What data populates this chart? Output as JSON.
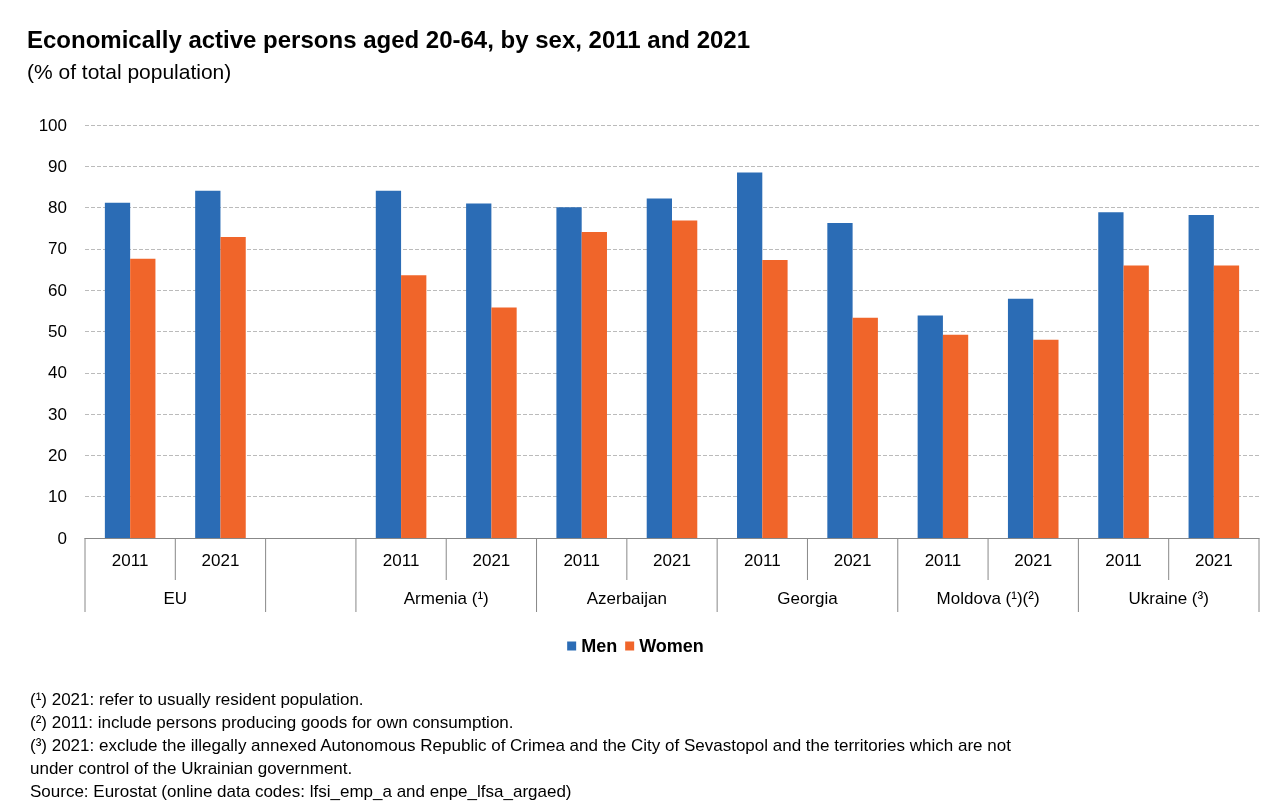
{
  "chart_data": {
    "type": "bar",
    "title": "Economically active persons aged 20-64, by sex, 2011 and 2021",
    "subtitle": "(% of total population)",
    "categories": [
      "2011",
      "2021",
      null,
      "2011",
      "2021",
      "2011",
      "2021",
      "2011",
      "2021",
      "2011",
      "2021",
      "2011",
      "2021"
    ],
    "series": [
      {
        "name": "Men",
        "color": "#2b6cb5",
        "values": [
          81.2,
          84.1,
          null,
          84.1,
          81.0,
          80.1,
          82.2,
          88.5,
          76.3,
          53.9,
          57.9,
          78.9,
          78.2
        ]
      },
      {
        "name": "Women",
        "color": "#f0652a",
        "values": [
          67.6,
          72.9,
          null,
          63.6,
          55.8,
          74.1,
          76.9,
          67.3,
          53.3,
          49.2,
          48.0,
          66.0,
          66.0
        ]
      }
    ],
    "ylim": [
      0,
      100
    ],
    "yticks": [
      0,
      10,
      20,
      30,
      40,
      50,
      60,
      70,
      80,
      90,
      100
    ],
    "grid": "y",
    "legend": "bottom",
    "annotations": [
      "EU",
      "Armenia (¹)",
      "Azerbaijan",
      "Georgia",
      "Moldova (¹)(²)",
      "Ukraine (³)",
      "(¹) 2021: refer to usually resident population.",
      "(²) 2011: include persons producing goods for own consumption.",
      "(³) 2021: exclude the illegally annexed Autonomous Republic of Crimea and the City of Sevastopol and the territories which are not under control of the Ukrainian government.",
      "Source: Eurostat (online data codes: lfsi_emp_a and enpe_lfsa_argaed)"
    ]
  }
}
